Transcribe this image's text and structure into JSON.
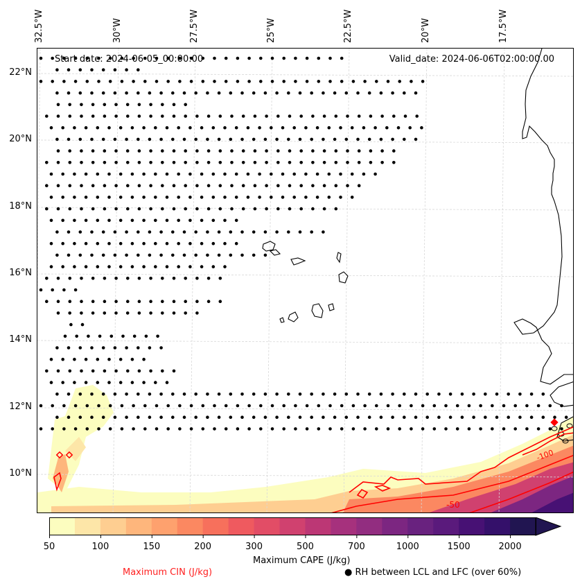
{
  "map": {
    "start_date_label": "Start date: 2024-06-05_00:00:00",
    "valid_date_label": "Valid_date: 2024-06-06T02:00:00.00",
    "longitude_labels": [
      "32.5°W",
      "30°W",
      "27.5°W",
      "25°W",
      "22.5°W",
      "20°W",
      "17.5°W"
    ],
    "latitude_labels": [
      "22°N",
      "20°N",
      "18°N",
      "16°N",
      "14°N",
      "12°N",
      "10°N"
    ],
    "extent": {
      "lon_min": -32.6,
      "lon_max": -15.0,
      "lat_min": 8.9,
      "lat_max": 22.8
    },
    "colors": {
      "coastline": "#000000",
      "gridline": "#d8d8d8",
      "cin_contour": "#ff0000",
      "rh_dot": "#000000"
    },
    "cin_contour_labels": [
      "-50",
      "-100"
    ]
  },
  "colorbar": {
    "title": "Maximum CAPE (J/kg)",
    "tick_labels": [
      "50",
      "100",
      "150",
      "200",
      "300",
      "500",
      "700",
      "1000",
      "1500",
      "2000"
    ],
    "levels": [
      50,
      75,
      100,
      125,
      150,
      175,
      200,
      250,
      300,
      400,
      500,
      600,
      700,
      850,
      1000,
      1250,
      1500,
      1750,
      2000,
      2500
    ],
    "colors": [
      "#fcfdbf",
      "#fde6a8",
      "#fece91",
      "#feb67c",
      "#fea16e",
      "#fb8861",
      "#f7705c",
      "#ef5a5f",
      "#e24d66",
      "#d0416f",
      "#bc3775",
      "#a6317d",
      "#922d80",
      "#7c2681",
      "#69227f",
      "#5a1a7c",
      "#471174",
      "#34106a",
      "#211551"
    ],
    "extend": "max"
  },
  "legend": {
    "cin_label": "Maximum CIN (J/kg)",
    "cin_color": "#ff2020",
    "rh_label": "● RH between LCL and LFC (over 60%)"
  }
}
